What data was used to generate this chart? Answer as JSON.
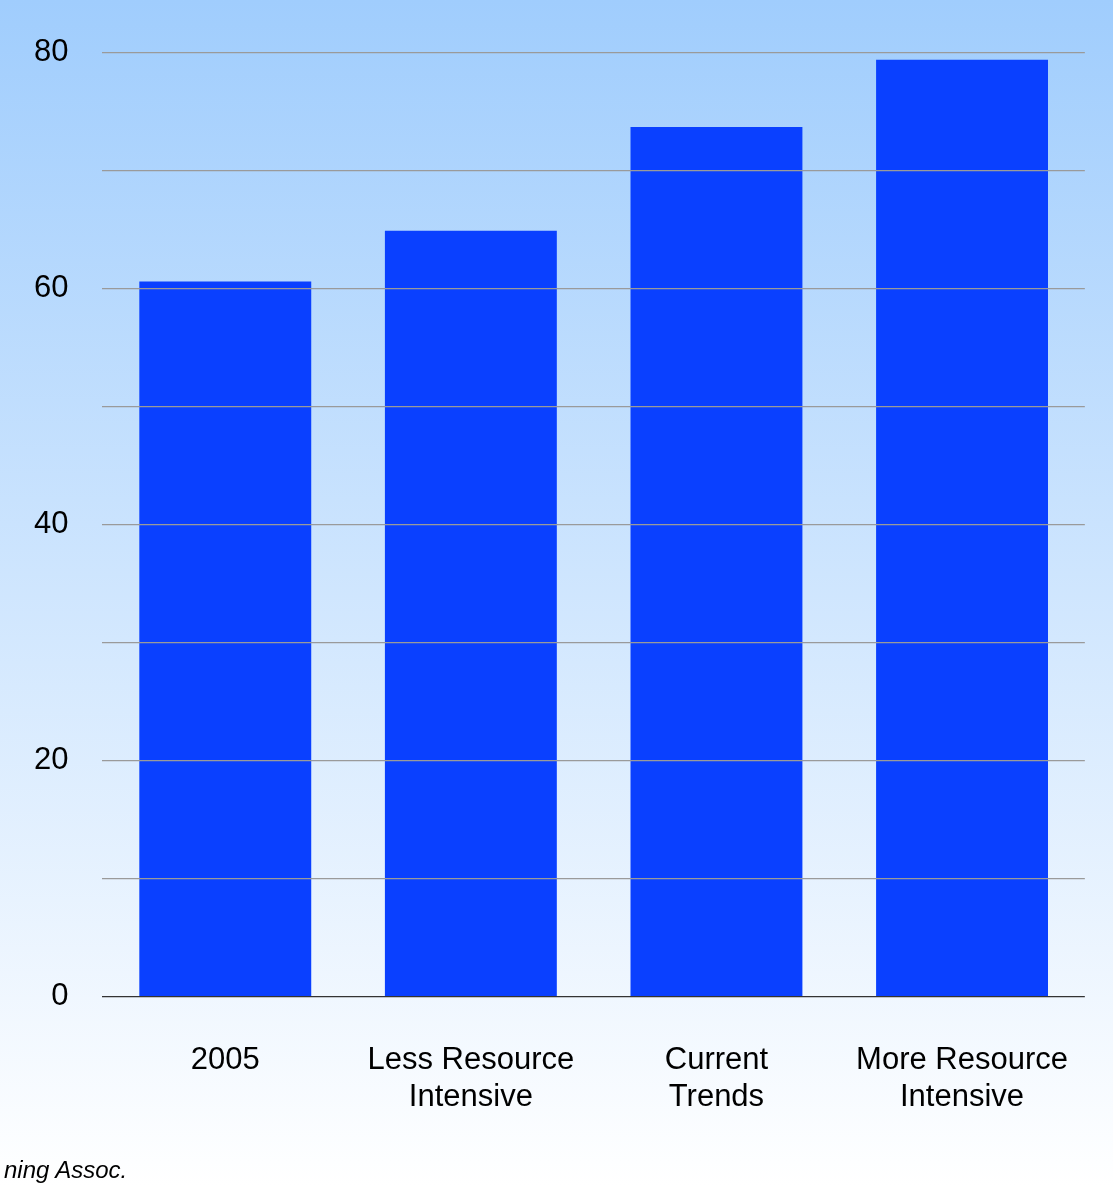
{
  "chart_data": {
    "type": "bar",
    "categories": [
      "2005",
      "Less Resource Intensive",
      "Current Trends",
      "More Resource Intensive"
    ],
    "values": [
      60.6,
      64.9,
      73.7,
      79.4
    ],
    "color": "#0a40ff",
    "ylim": [
      0,
      80
    ],
    "yticks": [
      0,
      {
        "value": 10,
        "label": null
      },
      20,
      {
        "value": 30,
        "label": null
      },
      40,
      {
        "value": 50,
        "label": null
      },
      60,
      {
        "value": 70,
        "label": null
      },
      80
    ],
    "grid": "y",
    "legend": false,
    "annotations": [
      "ning Assoc."
    ]
  }
}
